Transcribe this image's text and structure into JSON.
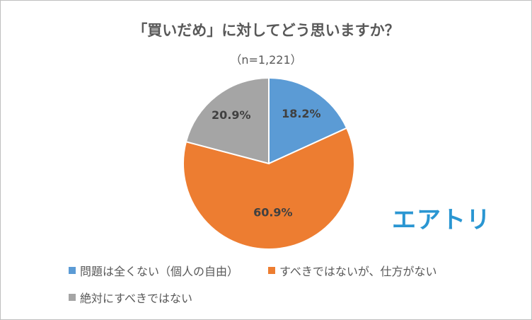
{
  "chart_data": {
    "type": "pie",
    "title": "「買いだめ」に対してどう思いますか？",
    "subtitle": "（n=1,221）",
    "slices": [
      {
        "name": "問題は全くない（個人の自由）",
        "value": 18.2,
        "label": "18.2%",
        "color": "#5b9bd5"
      },
      {
        "name": "すべきではないが、仕方がない",
        "value": 60.9,
        "label": "60.9%",
        "color": "#ed7d31"
      },
      {
        "name": "絶対にすべきではない",
        "value": 20.9,
        "label": "20.9%",
        "color": "#a5a5a5"
      }
    ],
    "start": "top",
    "direction": "clockwise",
    "legend_position": "bottom"
  },
  "logo": {
    "text": "エアトリ",
    "color": "#2a96d2"
  }
}
